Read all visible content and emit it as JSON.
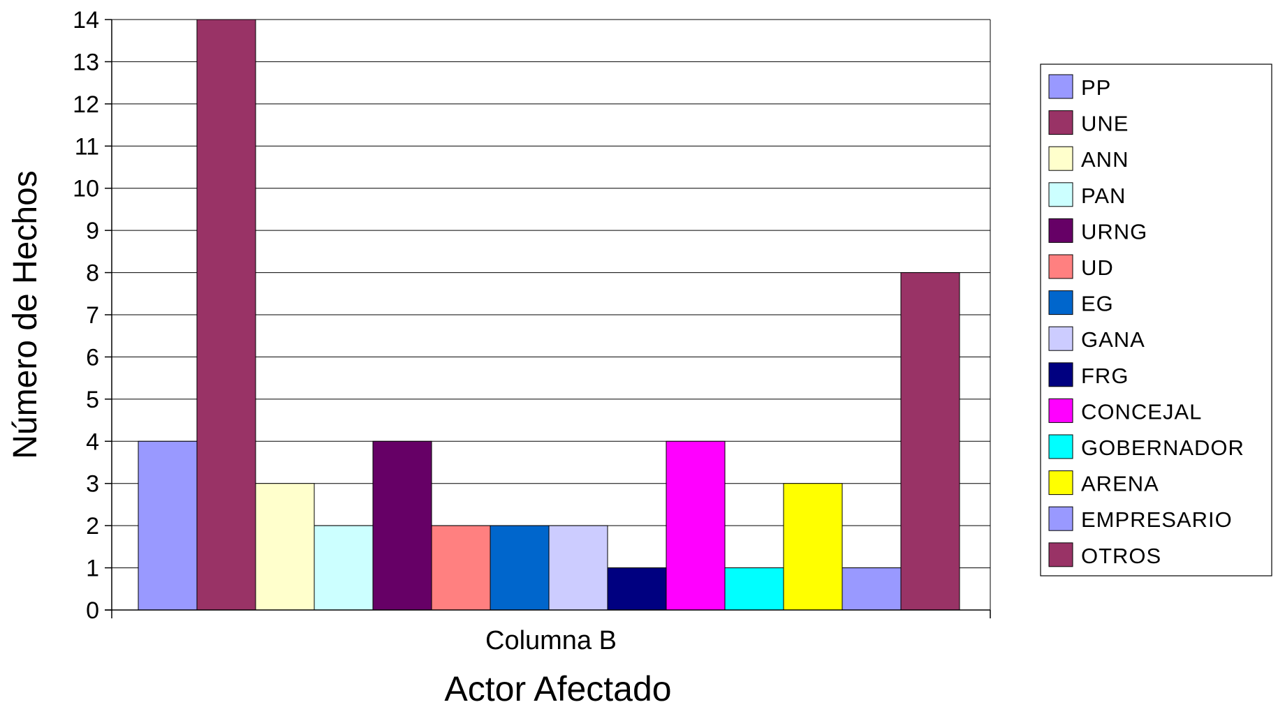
{
  "chart_data": {
    "type": "bar",
    "xlabel": "Actor Afectado",
    "ylabel": "Número de Hechos",
    "categories": [
      "Columna B"
    ],
    "ylim": [
      0,
      14
    ],
    "yticks": [
      0,
      1,
      2,
      3,
      4,
      5,
      6,
      7,
      8,
      9,
      10,
      11,
      12,
      13,
      14
    ],
    "grid": true,
    "legend_position": "right",
    "series": [
      {
        "name": "PP",
        "values": [
          4
        ],
        "color": "#9999ff"
      },
      {
        "name": "UNE",
        "values": [
          14
        ],
        "color": "#993366"
      },
      {
        "name": "ANN",
        "values": [
          3
        ],
        "color": "#ffffcc"
      },
      {
        "name": "PAN",
        "values": [
          2
        ],
        "color": "#ccffff"
      },
      {
        "name": "URNG",
        "values": [
          4
        ],
        "color": "#660066"
      },
      {
        "name": "UD",
        "values": [
          2
        ],
        "color": "#ff8080"
      },
      {
        "name": "EG",
        "values": [
          2
        ],
        "color": "#0066cc"
      },
      {
        "name": "GANA",
        "values": [
          2
        ],
        "color": "#ccccff"
      },
      {
        "name": "FRG",
        "values": [
          1
        ],
        "color": "#000080"
      },
      {
        "name": "CONCEJAL",
        "values": [
          4
        ],
        "color": "#ff00ff"
      },
      {
        "name": "GOBERNADOR",
        "values": [
          1
        ],
        "color": "#00ffff"
      },
      {
        "name": "ARENA",
        "values": [
          3
        ],
        "color": "#ffff00"
      },
      {
        "name": "EMPRESARIO",
        "values": [
          1
        ],
        "color": "#9999ff"
      },
      {
        "name": "OTROS",
        "values": [
          8
        ],
        "color": "#993366"
      }
    ]
  }
}
